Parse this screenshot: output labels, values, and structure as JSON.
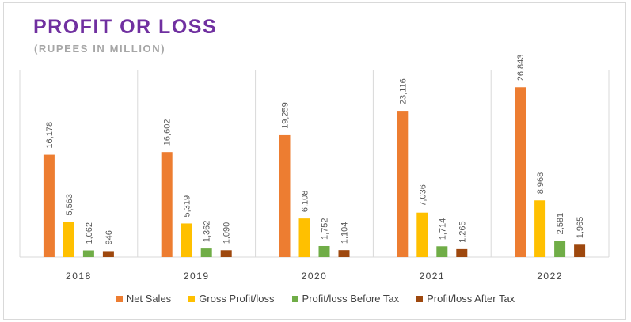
{
  "chart_data": {
    "type": "bar",
    "title": "PROFIT OR LOSS",
    "subtitle": "(RUPEES IN MILLION)",
    "categories": [
      "2018",
      "2019",
      "2020",
      "2021",
      "2022"
    ],
    "series": [
      {
        "name": "Net Sales",
        "color": "#ed7d31",
        "values": [
          16178,
          16602,
          19259,
          23116,
          26843
        ],
        "labels": [
          "16,178",
          "16,602",
          "19,259",
          "23,116",
          "26,843"
        ]
      },
      {
        "name": "Gross Profit/loss",
        "color": "#ffc000",
        "values": [
          5563,
          5319,
          6108,
          7036,
          8968
        ],
        "labels": [
          "5,563",
          "5,319",
          "6,108",
          "7,036",
          "8,968"
        ]
      },
      {
        "name": "Profit/loss Before Tax",
        "color": "#70ad47",
        "values": [
          1062,
          1362,
          1752,
          1714,
          2581
        ],
        "labels": [
          "1,062",
          "1,362",
          "1,752",
          "1,714",
          "2,581"
        ]
      },
      {
        "name": "Profit/loss After Tax",
        "color": "#9e480e",
        "values": [
          946,
          1090,
          1104,
          1265,
          1965
        ],
        "labels": [
          "946",
          "1,090",
          "1,104",
          "1,265",
          "1,965"
        ]
      }
    ],
    "ylim": [
      0,
      30000
    ],
    "grid": false,
    "legend_position": "bottom"
  }
}
